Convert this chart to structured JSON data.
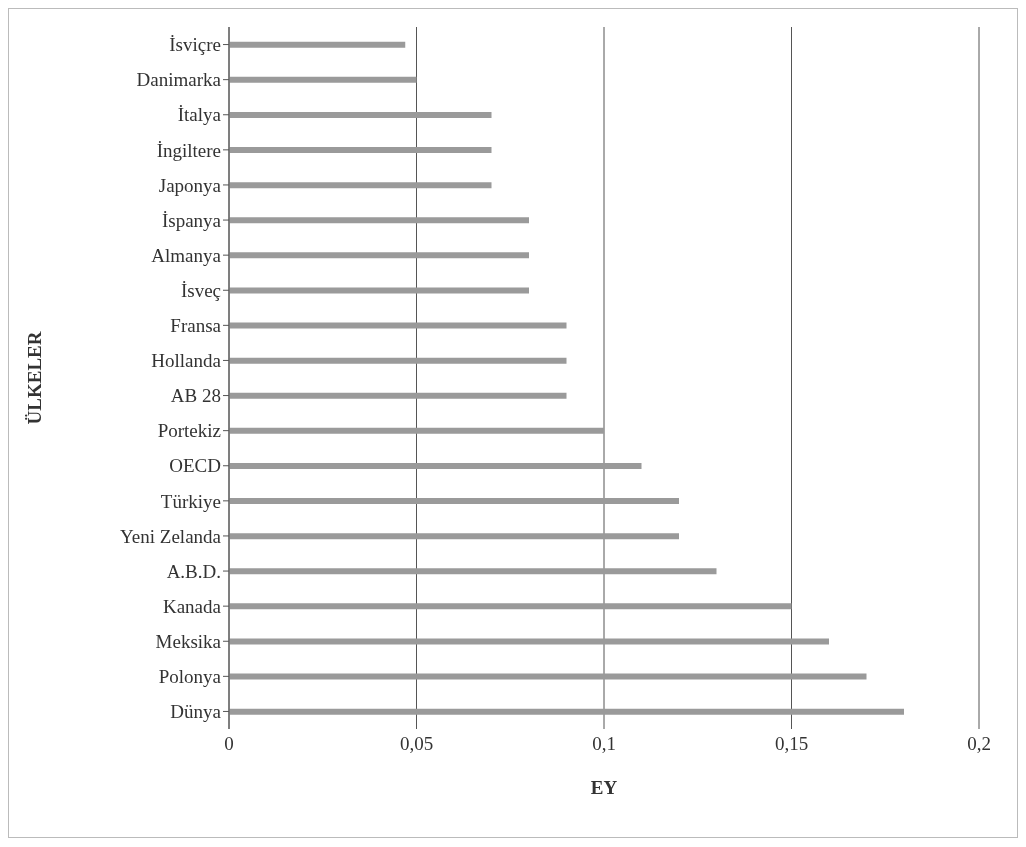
{
  "chart_data": {
    "type": "bar",
    "orientation": "horizontal",
    "xlabel": "EY",
    "ylabel": "ÜLKELER",
    "categories": [
      "İsviçre",
      "Danimarka",
      "İtalya",
      "İngiltere",
      "Japonya",
      "İspanya",
      "Almanya",
      "İsveç",
      "Fransa",
      "Hollanda",
      "AB 28",
      "Portekiz",
      "OECD",
      "Türkiye",
      "Yeni Zelanda",
      "A.B.D.",
      "Kanada",
      "Meksika",
      "Polonya",
      "Dünya"
    ],
    "values": [
      0.047,
      0.05,
      0.07,
      0.07,
      0.07,
      0.08,
      0.08,
      0.08,
      0.09,
      0.09,
      0.09,
      0.1,
      0.11,
      0.12,
      0.12,
      0.13,
      0.15,
      0.16,
      0.17,
      0.18
    ],
    "color": "#9a9a9a",
    "xlim": [
      0,
      0.2
    ],
    "xticks": [
      {
        "value": 0,
        "label": "0"
      },
      {
        "value": 0.05,
        "label": "0,05"
      },
      {
        "value": 0.1,
        "label": "0,1"
      },
      {
        "value": 0.15,
        "label": "0,15"
      },
      {
        "value": 0.2,
        "label": "0,2"
      }
    ],
    "grid": "x"
  }
}
